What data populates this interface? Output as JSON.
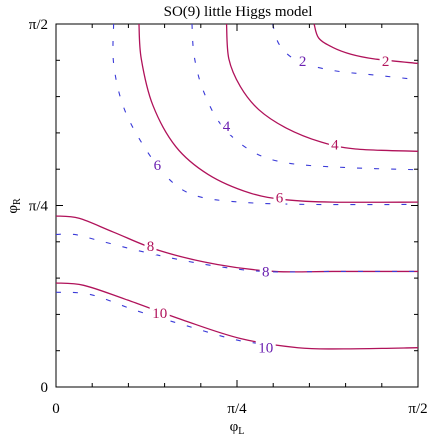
{
  "chart_data": {
    "type": "line",
    "title": "SO(9) little Higgs model",
    "xlabel": {
      "main": "φ",
      "sub": "L"
    },
    "ylabel": {
      "main": "φ",
      "sub": "R"
    },
    "x_domain": [
      0,
      1.5708
    ],
    "y_domain": [
      0,
      1.5708
    ],
    "x_ticks": [
      {
        "value": 0,
        "label": "0"
      },
      {
        "value": 0.7854,
        "label": "π/4"
      },
      {
        "value": 1.5708,
        "label": "π/2"
      }
    ],
    "y_ticks": [
      {
        "value": 0,
        "label": "0"
      },
      {
        "value": 0.7854,
        "label": "π/4"
      },
      {
        "value": 1.5708,
        "label": "π/2"
      }
    ],
    "colors": {
      "solid": "#b0125a",
      "dashed": "#3a3ad8",
      "solid_label": "#b0125a",
      "dashed_label": "#6a1fb0"
    },
    "grid": false,
    "series": [
      {
        "level": "2",
        "style": "solid",
        "points": [
          [
            1.12,
            1.5708
          ],
          [
            1.14,
            1.51
          ],
          [
            1.2,
            1.47
          ],
          [
            1.28,
            1.44
          ],
          [
            1.38,
            1.42
          ],
          [
            1.5708,
            1.4
          ]
        ]
      },
      {
        "level": "4",
        "style": "solid",
        "points": [
          [
            0.74,
            1.5708
          ],
          [
            0.75,
            1.42
          ],
          [
            0.8,
            1.3
          ],
          [
            0.88,
            1.2
          ],
          [
            1.0,
            1.12
          ],
          [
            1.15,
            1.06
          ],
          [
            1.3,
            1.03
          ],
          [
            1.5708,
            1.02
          ]
        ]
      },
      {
        "level": "6",
        "style": "solid",
        "points": [
          [
            0.36,
            1.5708
          ],
          [
            0.37,
            1.42
          ],
          [
            0.42,
            1.22
          ],
          [
            0.52,
            1.04
          ],
          [
            0.66,
            0.92
          ],
          [
            0.84,
            0.84
          ],
          [
            1.0,
            0.81
          ],
          [
            1.2,
            0.8
          ],
          [
            1.5708,
            0.8
          ]
        ]
      },
      {
        "level": "8",
        "style": "solid",
        "points": [
          [
            0,
            0.74
          ],
          [
            0.1,
            0.73
          ],
          [
            0.25,
            0.67
          ],
          [
            0.45,
            0.59
          ],
          [
            0.7,
            0.53
          ],
          [
            0.95,
            0.5
          ],
          [
            1.2,
            0.5
          ],
          [
            1.5708,
            0.5
          ]
        ]
      },
      {
        "level": "10",
        "style": "solid",
        "points": [
          [
            0,
            0.45
          ],
          [
            0.12,
            0.44
          ],
          [
            0.3,
            0.38
          ],
          [
            0.55,
            0.29
          ],
          [
            0.8,
            0.21
          ],
          [
            1.05,
            0.17
          ],
          [
            1.25,
            0.165
          ],
          [
            1.5708,
            0.17
          ]
        ]
      },
      {
        "level": "2",
        "style": "dashed",
        "points": [
          [
            0.94,
            1.5708
          ],
          [
            0.97,
            1.48
          ],
          [
            1.05,
            1.41
          ],
          [
            1.2,
            1.37
          ],
          [
            1.38,
            1.35
          ],
          [
            1.5708,
            1.33
          ]
        ]
      },
      {
        "level": "4",
        "style": "dashed",
        "points": [
          [
            0.59,
            1.5708
          ],
          [
            0.6,
            1.43
          ],
          [
            0.64,
            1.28
          ],
          [
            0.72,
            1.13
          ],
          [
            0.85,
            1.02
          ],
          [
            1.0,
            0.97
          ],
          [
            1.25,
            0.95
          ],
          [
            1.5708,
            0.94
          ]
        ]
      },
      {
        "level": "6",
        "style": "dashed",
        "points": [
          [
            0.25,
            1.5708
          ],
          [
            0.25,
            1.4
          ],
          [
            0.29,
            1.22
          ],
          [
            0.37,
            1.06
          ],
          [
            0.48,
            0.91
          ],
          [
            0.6,
            0.83
          ],
          [
            0.8,
            0.8
          ],
          [
            1.1,
            0.79
          ],
          [
            1.5708,
            0.79
          ]
        ]
      },
      {
        "level": "8",
        "style": "dashed",
        "points": [
          [
            0,
            0.66
          ],
          [
            0.08,
            0.66
          ],
          [
            0.2,
            0.63
          ],
          [
            0.4,
            0.58
          ],
          [
            0.65,
            0.53
          ],
          [
            0.9,
            0.5
          ],
          [
            1.2,
            0.5
          ],
          [
            1.5708,
            0.5
          ]
        ]
      },
      {
        "level": "10",
        "style": "dashed",
        "points": [
          [
            0,
            0.41
          ],
          [
            0.15,
            0.4
          ],
          [
            0.35,
            0.33
          ],
          [
            0.55,
            0.27
          ],
          [
            0.8,
            0.2
          ],
          [
            1.0,
            0.18
          ]
        ]
      }
    ],
    "contour_labels": [
      {
        "text": "2",
        "style": "solid",
        "x": 1.43,
        "y": 1.41
      },
      {
        "text": "4",
        "style": "solid",
        "x": 1.21,
        "y": 1.05
      },
      {
        "text": "6",
        "style": "solid",
        "x": 0.97,
        "y": 0.82
      },
      {
        "text": "8",
        "style": "solid",
        "x": 0.41,
        "y": 0.61
      },
      {
        "text": "10",
        "style": "solid",
        "x": 0.45,
        "y": 0.32
      },
      {
        "text": "2",
        "style": "dashed",
        "x": 1.07,
        "y": 1.41
      },
      {
        "text": "4",
        "style": "dashed",
        "x": 0.74,
        "y": 1.13
      },
      {
        "text": "6",
        "style": "dashed",
        "x": 0.44,
        "y": 0.96
      },
      {
        "text": "8",
        "style": "dashed",
        "x": 0.91,
        "y": 0.5
      },
      {
        "text": "10",
        "style": "dashed",
        "x": 0.91,
        "y": 0.17
      }
    ]
  }
}
